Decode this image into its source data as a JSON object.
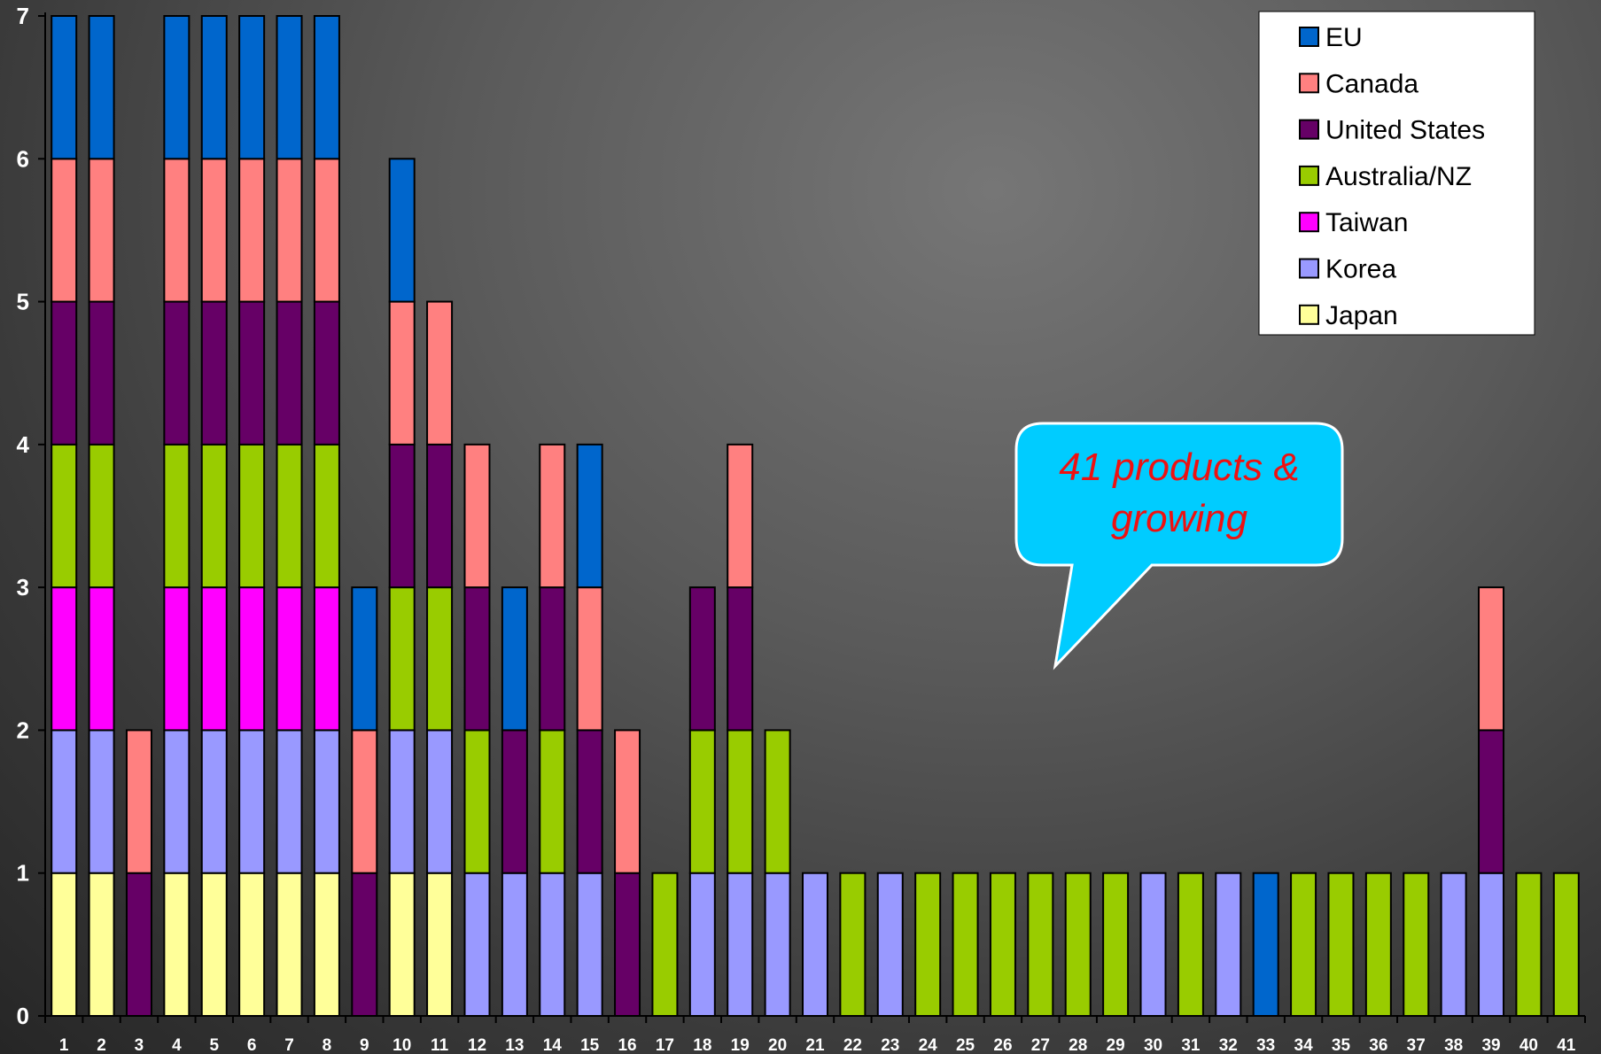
{
  "chart_data": {
    "type": "bar",
    "stacked": true,
    "title": "",
    "xlabel": "",
    "ylabel": "",
    "ylim": [
      0,
      7
    ],
    "yticks": [
      "0",
      "1",
      "2",
      "3",
      "4",
      "5",
      "6",
      "7"
    ],
    "categories": [
      "1",
      "2",
      "3",
      "4",
      "5",
      "6",
      "7",
      "8",
      "9",
      "10",
      "11",
      "12",
      "13",
      "14",
      "15",
      "16",
      "17",
      "18",
      "19",
      "20",
      "21",
      "22",
      "23",
      "24",
      "25",
      "26",
      "27",
      "28",
      "29",
      "30",
      "31",
      "32",
      "33",
      "34",
      "35",
      "36",
      "37",
      "38",
      "39",
      "40",
      "41"
    ],
    "series": [
      {
        "name": "Japan",
        "color": "#ffff99",
        "values": [
          1,
          1,
          0,
          1,
          1,
          1,
          1,
          1,
          0,
          1,
          1,
          0,
          0,
          0,
          0,
          0,
          0,
          0,
          0,
          0,
          0,
          0,
          0,
          0,
          0,
          0,
          0,
          0,
          0,
          0,
          0,
          0,
          0,
          0,
          0,
          0,
          0,
          0,
          0,
          0,
          0
        ]
      },
      {
        "name": "Korea",
        "color": "#9999ff",
        "values": [
          1,
          1,
          0,
          1,
          1,
          1,
          1,
          1,
          0,
          1,
          1,
          1,
          1,
          1,
          1,
          0,
          0,
          1,
          1,
          1,
          1,
          0,
          1,
          0,
          0,
          0,
          0,
          0,
          0,
          1,
          0,
          1,
          0,
          0,
          0,
          0,
          0,
          1,
          1,
          0,
          0
        ]
      },
      {
        "name": "Taiwan",
        "color": "#ff00ff",
        "values": [
          1,
          1,
          0,
          1,
          1,
          1,
          1,
          1,
          0,
          0,
          0,
          0,
          0,
          0,
          0,
          0,
          0,
          0,
          0,
          0,
          0,
          0,
          0,
          0,
          0,
          0,
          0,
          0,
          0,
          0,
          0,
          0,
          0,
          0,
          0,
          0,
          0,
          0,
          0,
          0,
          0
        ]
      },
      {
        "name": "Australia/NZ",
        "color": "#99cc00",
        "values": [
          1,
          1,
          0,
          1,
          1,
          1,
          1,
          1,
          0,
          1,
          1,
          1,
          0,
          1,
          0,
          0,
          1,
          1,
          1,
          1,
          0,
          1,
          0,
          1,
          1,
          1,
          1,
          1,
          1,
          0,
          1,
          0,
          0,
          1,
          1,
          1,
          1,
          0,
          0,
          1,
          1
        ]
      },
      {
        "name": "United States",
        "color": "#660066",
        "values": [
          1,
          1,
          1,
          1,
          1,
          1,
          1,
          1,
          1,
          1,
          1,
          1,
          1,
          1,
          1,
          1,
          0,
          1,
          1,
          0,
          0,
          0,
          0,
          0,
          0,
          0,
          0,
          0,
          0,
          0,
          0,
          0,
          0,
          0,
          0,
          0,
          0,
          0,
          1,
          0,
          0
        ]
      },
      {
        "name": "Canada",
        "color": "#ff8080",
        "values": [
          1,
          1,
          1,
          1,
          1,
          1,
          1,
          1,
          1,
          1,
          1,
          1,
          0,
          1,
          1,
          1,
          0,
          0,
          1,
          0,
          0,
          0,
          0,
          0,
          0,
          0,
          0,
          0,
          0,
          0,
          0,
          0,
          0,
          0,
          0,
          0,
          0,
          0,
          1,
          0,
          0
        ]
      },
      {
        "name": "EU",
        "color": "#0066cc",
        "values": [
          1,
          1,
          0,
          1,
          1,
          1,
          1,
          1,
          1,
          1,
          0,
          0,
          1,
          0,
          1,
          0,
          0,
          0,
          0,
          0,
          0,
          0,
          0,
          0,
          0,
          0,
          0,
          0,
          0,
          0,
          0,
          0,
          1,
          0,
          0,
          0,
          0,
          0,
          0,
          0,
          0
        ]
      }
    ],
    "legend": {
      "placement": "top-right",
      "order": [
        "EU",
        "Canada",
        "United States",
        "Australia/NZ",
        "Taiwan",
        "Korea",
        "Japan"
      ]
    },
    "annotations": [
      {
        "type": "callout",
        "lines": [
          "41 products &",
          "growing"
        ],
        "text_color": "#ee1111",
        "fill": "#00ccff"
      }
    ],
    "grid": false
  }
}
